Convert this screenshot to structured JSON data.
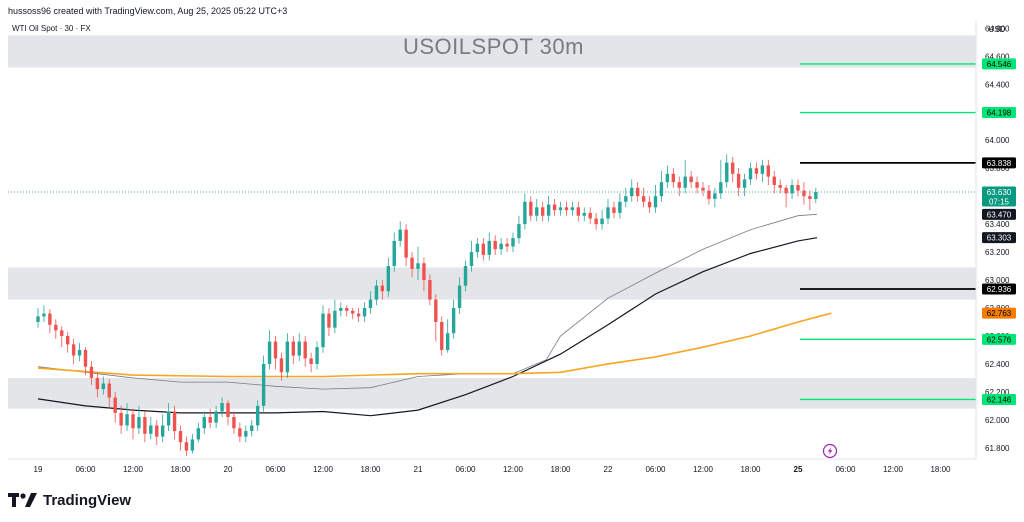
{
  "header": {
    "credit": "hussoss96 created with TradingView.com, Aug 25, 2025 05:22 UTC+3",
    "symbol_line": "WTI Oil Spot · 30 · FX",
    "watermark": "USOILSPOT 30m"
  },
  "branding": {
    "logo_text": "TradingView",
    "logo_icon": "tradingview-logo-icon"
  },
  "colors": {
    "bull": "#26a69a",
    "bear": "#ef5350",
    "zone": "#e4e5e8",
    "ema_fast": "#787b86",
    "ema_slow": "#131722",
    "ema_long": "#f5a623",
    "green_level": "#00e676",
    "black_level": "#000000",
    "orange_level": "#f57c00",
    "current_price": "#089981"
  },
  "chart_data": {
    "type": "candlestick",
    "currency": "USD",
    "ylim": [
      61.72,
      64.86
    ],
    "y_ticks": [
      "64.800",
      "64.600",
      "64.400",
      "64.200",
      "64.000",
      "63.800",
      "63.600",
      "63.400",
      "63.200",
      "63.000",
      "62.800",
      "62.600",
      "62.400",
      "62.200",
      "62.000",
      "61.800"
    ],
    "x_labels": [
      {
        "label": "19",
        "t": 0
      },
      {
        "label": "06:00",
        "t": 1
      },
      {
        "label": "12:00",
        "t": 2
      },
      {
        "label": "18:00",
        "t": 3
      },
      {
        "label": "20",
        "t": 4
      },
      {
        "label": "06:00",
        "t": 5
      },
      {
        "label": "12:00",
        "t": 6
      },
      {
        "label": "18:00",
        "t": 7
      },
      {
        "label": "21",
        "t": 8
      },
      {
        "label": "06:00",
        "t": 9
      },
      {
        "label": "12:00",
        "t": 10
      },
      {
        "label": "18:00",
        "t": 11
      },
      {
        "label": "22",
        "t": 12
      },
      {
        "label": "06:00",
        "t": 13
      },
      {
        "label": "12:00",
        "t": 14
      },
      {
        "label": "18:00",
        "t": 15
      },
      {
        "label": "25",
        "t": 16
      },
      {
        "label": "06:00",
        "t": 17
      },
      {
        "label": "12:00",
        "t": 18
      },
      {
        "label": "18:00",
        "t": 19
      }
    ],
    "zones": [
      {
        "low": 64.52,
        "high": 64.75
      },
      {
        "low": 62.86,
        "high": 63.09
      },
      {
        "low": 62.08,
        "high": 62.3
      }
    ],
    "levels": [
      {
        "value": 64.546,
        "label": "64.546",
        "kind": "green"
      },
      {
        "value": 64.198,
        "label": "64.198",
        "kind": "green"
      },
      {
        "value": 63.838,
        "label": "63.838",
        "kind": "black"
      },
      {
        "value": 62.936,
        "label": "62.936",
        "kind": "black"
      },
      {
        "value": 62.576,
        "label": "62.576",
        "kind": "green"
      },
      {
        "value": 62.146,
        "label": "62.146",
        "kind": "green"
      }
    ],
    "price_tags": [
      {
        "value": 63.63,
        "label": "63.630",
        "sub": "07:15",
        "kind": "current"
      },
      {
        "value": 63.47,
        "label": "63.470",
        "kind": "ema_fast"
      },
      {
        "value": 63.303,
        "label": "63.303",
        "kind": "ema_slow"
      },
      {
        "value": 62.763,
        "label": "62.763",
        "kind": "ema_long"
      }
    ],
    "series": [
      {
        "name": "EMA fast",
        "kind": "ema_fast",
        "points": [
          [
            0,
            62.38
          ],
          [
            1,
            62.34
          ],
          [
            2,
            62.3
          ],
          [
            3,
            62.27
          ],
          [
            4,
            62.27
          ],
          [
            5,
            62.24
          ],
          [
            6,
            62.22
          ],
          [
            7,
            62.23
          ],
          [
            8,
            62.31
          ],
          [
            9,
            62.33
          ],
          [
            10,
            62.33
          ],
          [
            10.7,
            62.43
          ],
          [
            11,
            62.6
          ],
          [
            12,
            62.87
          ],
          [
            13,
            63.05
          ],
          [
            14,
            63.22
          ],
          [
            15,
            63.36
          ],
          [
            16,
            63.46
          ],
          [
            16.4,
            63.47
          ]
        ]
      },
      {
        "name": "EMA slow",
        "kind": "ema_slow",
        "points": [
          [
            0,
            62.15
          ],
          [
            1,
            62.1
          ],
          [
            2,
            62.07
          ],
          [
            3,
            62.05
          ],
          [
            4,
            62.05
          ],
          [
            5,
            62.05
          ],
          [
            6,
            62.06
          ],
          [
            7,
            62.03
          ],
          [
            8,
            62.07
          ],
          [
            9,
            62.18
          ],
          [
            10,
            62.31
          ],
          [
            11,
            62.47
          ],
          [
            12,
            62.68
          ],
          [
            13,
            62.9
          ],
          [
            14,
            63.06
          ],
          [
            15,
            63.19
          ],
          [
            16,
            63.28
          ],
          [
            16.4,
            63.303
          ]
        ]
      },
      {
        "name": "EMA long",
        "kind": "ema_long",
        "points": [
          [
            0,
            62.37
          ],
          [
            2,
            62.32
          ],
          [
            4,
            62.31
          ],
          [
            6,
            62.31
          ],
          [
            8,
            62.33
          ],
          [
            10,
            62.33
          ],
          [
            11,
            62.34
          ],
          [
            12,
            62.4
          ],
          [
            13,
            62.45
          ],
          [
            14,
            62.52
          ],
          [
            15,
            62.6
          ],
          [
            16,
            62.7
          ],
          [
            16.7,
            62.763
          ]
        ]
      }
    ],
    "candles": [
      [
        0,
        62.7,
        62.74,
        62.8,
        62.66
      ],
      [
        0.125,
        62.74,
        62.76,
        62.82,
        62.7
      ],
      [
        0.25,
        62.76,
        62.68,
        62.79,
        62.62
      ],
      [
        0.375,
        62.68,
        62.64,
        62.72,
        62.58
      ],
      [
        0.5,
        62.64,
        62.6,
        62.67,
        62.52
      ],
      [
        0.625,
        62.6,
        62.54,
        62.63,
        62.48
      ],
      [
        0.75,
        62.54,
        62.46,
        62.58,
        62.4
      ],
      [
        0.875,
        62.46,
        62.5,
        62.55,
        62.42
      ],
      [
        1,
        62.5,
        62.38,
        62.52,
        62.32
      ],
      [
        1.125,
        62.38,
        62.3,
        62.42,
        62.25
      ],
      [
        1.25,
        62.3,
        62.22,
        62.34,
        62.16
      ],
      [
        1.375,
        62.22,
        62.26,
        62.31,
        62.18
      ],
      [
        1.5,
        62.26,
        62.16,
        62.29,
        62.08
      ],
      [
        1.625,
        62.16,
        62.05,
        62.2,
        61.98
      ],
      [
        1.75,
        62.05,
        61.96,
        62.1,
        61.9
      ],
      [
        1.875,
        61.96,
        62.04,
        62.12,
        61.92
      ],
      [
        2,
        62.04,
        61.94,
        62.08,
        61.86
      ],
      [
        2.125,
        61.94,
        62.02,
        62.1,
        61.9
      ],
      [
        2.25,
        62.02,
        61.9,
        62.06,
        61.84
      ],
      [
        2.375,
        61.9,
        61.96,
        62.02,
        61.86
      ],
      [
        2.5,
        61.96,
        61.88,
        62.0,
        61.82
      ],
      [
        2.625,
        61.88,
        61.96,
        62.04,
        61.84
      ],
      [
        2.75,
        61.96,
        62.06,
        62.12,
        61.92
      ],
      [
        2.875,
        62.06,
        61.92,
        62.1,
        61.86
      ],
      [
        3,
        61.92,
        61.84,
        61.96,
        61.78
      ],
      [
        3.125,
        61.84,
        61.78,
        61.88,
        61.74
      ],
      [
        3.25,
        61.78,
        61.86,
        61.9,
        61.76
      ],
      [
        3.375,
        61.86,
        61.94,
        61.98,
        61.84
      ],
      [
        3.5,
        61.94,
        62.02,
        62.06,
        61.9
      ],
      [
        3.625,
        62.02,
        61.98,
        62.08,
        61.94
      ],
      [
        3.75,
        61.98,
        62.06,
        62.1,
        61.94
      ],
      [
        3.875,
        62.06,
        62.12,
        62.16,
        62.02
      ],
      [
        4,
        62.12,
        62.02,
        62.14,
        61.96
      ],
      [
        4.125,
        62.02,
        61.94,
        62.06,
        61.9
      ],
      [
        4.25,
        61.94,
        61.88,
        61.98,
        61.84
      ],
      [
        4.375,
        61.88,
        61.92,
        61.96,
        61.84
      ],
      [
        4.5,
        61.92,
        61.96,
        62.0,
        61.88
      ],
      [
        4.625,
        61.96,
        62.1,
        62.14,
        61.92
      ],
      [
        4.75,
        62.1,
        62.4,
        62.46,
        62.06
      ],
      [
        4.875,
        62.4,
        62.56,
        62.64,
        62.36
      ],
      [
        5,
        62.56,
        62.44,
        62.6,
        62.36
      ],
      [
        5.125,
        62.44,
        62.34,
        62.48,
        62.28
      ],
      [
        5.25,
        62.34,
        62.56,
        62.62,
        62.3
      ],
      [
        5.375,
        62.56,
        62.46,
        62.6,
        62.4
      ],
      [
        5.5,
        62.46,
        62.56,
        62.62,
        62.42
      ],
      [
        5.625,
        62.56,
        62.44,
        62.6,
        62.38
      ],
      [
        5.75,
        62.44,
        62.4,
        62.48,
        62.34
      ],
      [
        5.875,
        62.4,
        62.52,
        62.56,
        62.36
      ],
      [
        6,
        62.52,
        62.76,
        62.82,
        62.48
      ],
      [
        6.125,
        62.76,
        62.66,
        62.8,
        62.6
      ],
      [
        6.25,
        62.66,
        62.78,
        62.86,
        62.62
      ],
      [
        6.375,
        62.78,
        62.8,
        62.84,
        62.74
      ],
      [
        6.5,
        62.8,
        62.78,
        62.82,
        62.74
      ],
      [
        6.625,
        62.78,
        62.76,
        62.8,
        62.72
      ],
      [
        6.75,
        62.76,
        62.74,
        62.8,
        62.7
      ],
      [
        6.875,
        62.74,
        62.8,
        62.84,
        62.7
      ],
      [
        7,
        62.8,
        62.86,
        62.92,
        62.76
      ],
      [
        7.125,
        62.86,
        62.96,
        63.0,
        62.82
      ],
      [
        7.25,
        62.96,
        62.92,
        63.0,
        62.86
      ],
      [
        7.375,
        62.92,
        63.1,
        63.16,
        62.88
      ],
      [
        7.5,
        63.1,
        63.28,
        63.34,
        63.06
      ],
      [
        7.625,
        63.28,
        63.36,
        63.42,
        63.24
      ],
      [
        7.75,
        63.36,
        63.16,
        63.4,
        63.1
      ],
      [
        7.875,
        63.16,
        63.08,
        63.2,
        63.02
      ],
      [
        8,
        63.08,
        63.12,
        63.24,
        63.0
      ],
      [
        8.125,
        63.12,
        63.0,
        63.16,
        62.92
      ],
      [
        8.25,
        63.0,
        62.86,
        63.04,
        62.82
      ],
      [
        8.375,
        62.86,
        62.7,
        62.9,
        62.56
      ],
      [
        8.5,
        62.7,
        62.5,
        62.74,
        62.46
      ],
      [
        8.625,
        62.5,
        62.62,
        62.72,
        62.48
      ],
      [
        8.75,
        62.62,
        62.8,
        62.86,
        62.58
      ],
      [
        8.875,
        62.8,
        62.96,
        63.02,
        62.76
      ],
      [
        9,
        62.96,
        63.1,
        63.14,
        62.92
      ],
      [
        9.125,
        63.1,
        63.2,
        63.28,
        63.06
      ],
      [
        9.25,
        63.2,
        63.26,
        63.3,
        63.16
      ],
      [
        9.375,
        63.26,
        63.18,
        63.3,
        63.14
      ],
      [
        9.5,
        63.18,
        63.28,
        63.34,
        63.14
      ],
      [
        9.625,
        63.28,
        63.22,
        63.32,
        63.18
      ],
      [
        9.75,
        63.22,
        63.26,
        63.3,
        63.18
      ],
      [
        9.875,
        63.26,
        63.24,
        63.3,
        63.2
      ],
      [
        10,
        63.24,
        63.3,
        63.34,
        63.2
      ],
      [
        10.125,
        63.3,
        63.4,
        63.46,
        63.26
      ],
      [
        10.25,
        63.4,
        63.56,
        63.62,
        63.36
      ],
      [
        10.375,
        63.56,
        63.46,
        63.6,
        63.42
      ],
      [
        10.5,
        63.46,
        63.52,
        63.58,
        63.42
      ],
      [
        10.625,
        63.52,
        63.46,
        63.56,
        63.42
      ],
      [
        10.75,
        63.46,
        63.54,
        63.6,
        63.42
      ],
      [
        10.875,
        63.54,
        63.5,
        63.58,
        63.46
      ],
      [
        11,
        63.5,
        63.52,
        63.56,
        63.46
      ],
      [
        11.125,
        63.52,
        63.5,
        63.56,
        63.46
      ],
      [
        11.25,
        63.5,
        63.52,
        63.56,
        63.46
      ],
      [
        11.375,
        63.52,
        63.46,
        63.56,
        63.42
      ],
      [
        11.5,
        63.46,
        63.48,
        63.52,
        63.42
      ],
      [
        11.625,
        63.48,
        63.44,
        63.52,
        63.4
      ],
      [
        11.75,
        63.44,
        63.4,
        63.48,
        63.36
      ],
      [
        11.875,
        63.4,
        63.44,
        63.5,
        63.36
      ],
      [
        12,
        63.44,
        63.52,
        63.58,
        63.4
      ],
      [
        12.125,
        63.52,
        63.48,
        63.56,
        63.44
      ],
      [
        12.25,
        63.48,
        63.56,
        63.62,
        63.44
      ],
      [
        12.375,
        63.56,
        63.6,
        63.66,
        63.52
      ],
      [
        12.5,
        63.6,
        63.66,
        63.72,
        63.56
      ],
      [
        12.625,
        63.66,
        63.6,
        63.7,
        63.56
      ],
      [
        12.75,
        63.6,
        63.56,
        63.66,
        63.52
      ],
      [
        12.875,
        63.56,
        63.52,
        63.6,
        63.48
      ],
      [
        13,
        63.52,
        63.6,
        63.68,
        63.48
      ],
      [
        13.125,
        63.6,
        63.7,
        63.78,
        63.56
      ],
      [
        13.25,
        63.7,
        63.76,
        63.82,
        63.66
      ],
      [
        13.375,
        63.76,
        63.7,
        63.8,
        63.66
      ],
      [
        13.5,
        63.7,
        63.66,
        63.74,
        63.6
      ],
      [
        13.625,
        63.66,
        63.74,
        63.86,
        63.62
      ],
      [
        13.75,
        63.74,
        63.7,
        63.78,
        63.66
      ],
      [
        13.875,
        63.7,
        63.66,
        63.74,
        63.62
      ],
      [
        14,
        63.66,
        63.64,
        63.7,
        63.6
      ],
      [
        14.125,
        63.64,
        63.58,
        63.68,
        63.54
      ],
      [
        14.25,
        63.58,
        63.62,
        63.66,
        63.52
      ],
      [
        14.375,
        63.62,
        63.7,
        63.86,
        63.58
      ],
      [
        14.5,
        63.7,
        63.84,
        63.9,
        63.66
      ],
      [
        14.625,
        63.84,
        63.76,
        63.88,
        63.7
      ],
      [
        14.75,
        63.76,
        63.66,
        63.8,
        63.6
      ],
      [
        14.875,
        63.66,
        63.72,
        63.76,
        63.6
      ],
      [
        15,
        63.72,
        63.8,
        63.84,
        63.68
      ],
      [
        15.125,
        63.8,
        63.76,
        63.84,
        63.72
      ],
      [
        15.25,
        63.76,
        63.82,
        63.86,
        63.7
      ],
      [
        15.375,
        63.82,
        63.74,
        63.86,
        63.68
      ],
      [
        15.5,
        63.74,
        63.68,
        63.78,
        63.62
      ],
      [
        15.625,
        63.68,
        63.66,
        63.72,
        63.62
      ],
      [
        15.75,
        63.66,
        63.62,
        63.68,
        63.52
      ],
      [
        15.875,
        63.62,
        63.68,
        63.72,
        63.58
      ],
      [
        16,
        63.68,
        63.64,
        63.72,
        63.6
      ],
      [
        16.125,
        63.64,
        63.6,
        63.7,
        63.54
      ],
      [
        16.25,
        63.6,
        63.58,
        63.64,
        63.5
      ],
      [
        16.375,
        63.58,
        63.63,
        63.66,
        63.55
      ]
    ]
  }
}
